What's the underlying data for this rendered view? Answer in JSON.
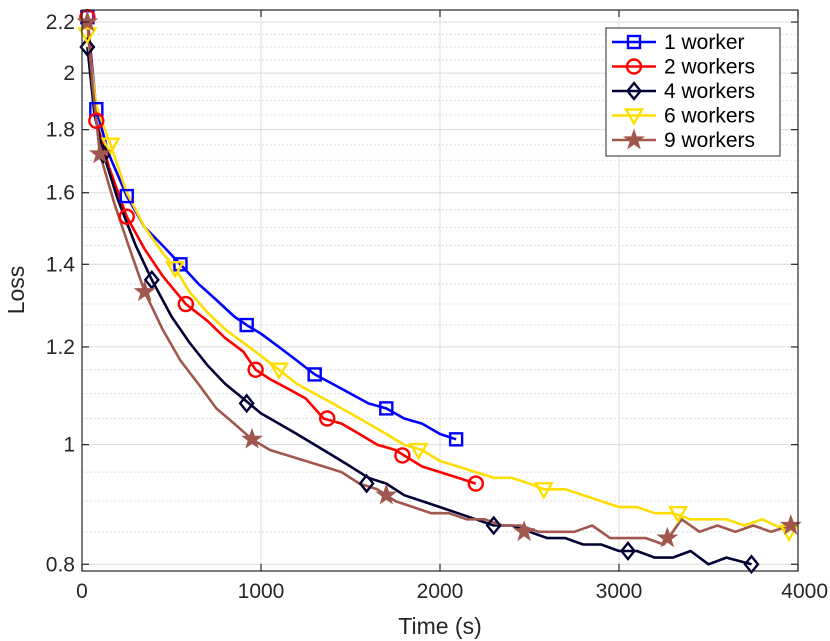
{
  "chart_data": {
    "type": "line",
    "title": "",
    "xlabel": "Time (s)",
    "ylabel": "Loss",
    "xlim": [
      0,
      4000
    ],
    "ylim": [
      0.79,
      2.25
    ],
    "y_scale": "log",
    "grid": true,
    "minor_grid": true,
    "legend_position": "top-right",
    "x_ticks": [
      0,
      1000,
      2000,
      3000,
      4000
    ],
    "x_tick_labels": [
      "0",
      "1000",
      "2000",
      "3000",
      "4000"
    ],
    "y_ticks": [
      0.8,
      1,
      1.2,
      1.4,
      1.6,
      1.8,
      2,
      2.2
    ],
    "y_tick_labels": [
      "0.8",
      "1",
      "1.2",
      "1.4",
      "1.6",
      "1.8",
      "2",
      "2.2"
    ],
    "series": [
      {
        "name": "1 worker",
        "color": "#0000ff",
        "marker": "square",
        "x": [
          30,
          80,
          150,
          250,
          350,
          450,
          550,
          650,
          750,
          850,
          920,
          1000,
          1100,
          1200,
          1300,
          1400,
          1500,
          1600,
          1700,
          1800,
          1900,
          2000,
          2090
        ],
        "y": [
          2.22,
          1.87,
          1.72,
          1.59,
          1.5,
          1.45,
          1.4,
          1.35,
          1.31,
          1.27,
          1.25,
          1.23,
          1.2,
          1.17,
          1.14,
          1.12,
          1.1,
          1.08,
          1.07,
          1.05,
          1.04,
          1.02,
          1.01
        ],
        "marker_x": [
          30,
          80,
          250,
          550,
          920,
          1300,
          1700,
          2090
        ],
        "marker_y": [
          2.22,
          1.87,
          1.59,
          1.4,
          1.25,
          1.14,
          1.07,
          1.01
        ]
      },
      {
        "name": "2 workers",
        "color": "#ff0000",
        "marker": "circle",
        "x": [
          30,
          80,
          150,
          250,
          350,
          450,
          580,
          700,
          800,
          900,
          970,
          1050,
          1150,
          1250,
          1350,
          1450,
          1550,
          1650,
          1750,
          1800,
          1900,
          2000,
          2100,
          2200
        ],
        "y": [
          2.22,
          1.83,
          1.68,
          1.53,
          1.44,
          1.37,
          1.3,
          1.26,
          1.22,
          1.19,
          1.15,
          1.13,
          1.11,
          1.09,
          1.05,
          1.04,
          1.02,
          1.0,
          0.99,
          0.98,
          0.96,
          0.95,
          0.94,
          0.93
        ],
        "marker_x": [
          30,
          80,
          250,
          580,
          970,
          1370,
          1790,
          2200
        ],
        "marker_y": [
          2.22,
          1.83,
          1.53,
          1.3,
          1.15,
          1.05,
          0.98,
          0.93
        ]
      },
      {
        "name": "4 workers",
        "color": "#000033",
        "marker": "diamond",
        "x": [
          30,
          70,
          120,
          200,
          300,
          390,
          500,
          600,
          700,
          800,
          900,
          1000,
          1100,
          1200,
          1300,
          1400,
          1500,
          1600,
          1700,
          1800,
          1900,
          2000,
          2100,
          2200,
          2300,
          2400,
          2500,
          2600,
          2700,
          2800,
          2900,
          3000,
          3100,
          3200,
          3300,
          3400,
          3500,
          3600,
          3740
        ],
        "y": [
          2.1,
          1.85,
          1.72,
          1.58,
          1.45,
          1.36,
          1.27,
          1.21,
          1.16,
          1.12,
          1.09,
          1.06,
          1.04,
          1.02,
          1.0,
          0.98,
          0.96,
          0.94,
          0.93,
          0.91,
          0.9,
          0.89,
          0.88,
          0.87,
          0.86,
          0.86,
          0.85,
          0.84,
          0.84,
          0.83,
          0.83,
          0.82,
          0.82,
          0.81,
          0.81,
          0.82,
          0.8,
          0.81,
          0.8
        ],
        "marker_x": [
          30,
          120,
          390,
          920,
          1590,
          2300,
          3050,
          3740
        ],
        "marker_y": [
          2.1,
          1.72,
          1.36,
          1.08,
          0.93,
          0.86,
          0.82,
          0.8
        ]
      },
      {
        "name": "6 workers",
        "color": "#ffdd00",
        "marker": "triangle-down",
        "x": [
          30,
          80,
          160,
          250,
          350,
          450,
          520,
          600,
          700,
          800,
          900,
          1000,
          1100,
          1200,
          1300,
          1400,
          1500,
          1600,
          1700,
          1800,
          1900,
          2000,
          2100,
          2200,
          2300,
          2400,
          2500,
          2580,
          2700,
          2800,
          2900,
          3000,
          3100,
          3200,
          3300,
          3400,
          3500,
          3600,
          3700,
          3800,
          3950
        ],
        "y": [
          2.15,
          1.88,
          1.75,
          1.6,
          1.5,
          1.43,
          1.39,
          1.33,
          1.28,
          1.24,
          1.21,
          1.18,
          1.15,
          1.12,
          1.1,
          1.08,
          1.06,
          1.04,
          1.02,
          1.0,
          0.99,
          0.97,
          0.96,
          0.95,
          0.94,
          0.94,
          0.93,
          0.92,
          0.92,
          0.91,
          0.9,
          0.89,
          0.89,
          0.88,
          0.88,
          0.87,
          0.87,
          0.87,
          0.86,
          0.87,
          0.85
        ],
        "marker_x": [
          30,
          160,
          520,
          1100,
          1880,
          2580,
          3330,
          3950
        ],
        "marker_y": [
          2.15,
          1.75,
          1.39,
          1.15,
          0.99,
          0.92,
          0.88,
          0.85
        ]
      },
      {
        "name": "9 workers",
        "color": "#a0584e",
        "marker": "star",
        "x": [
          30,
          60,
          100,
          180,
          260,
          350,
          450,
          550,
          650,
          750,
          850,
          950,
          1050,
          1150,
          1250,
          1350,
          1450,
          1550,
          1650,
          1750,
          1850,
          1950,
          2050,
          2150,
          2250,
          2350,
          2450,
          2550,
          2650,
          2750,
          2850,
          2950,
          3050,
          3150,
          3250,
          3350,
          3450,
          3550,
          3650,
          3750,
          3850,
          3960
        ],
        "y": [
          2.2,
          1.95,
          1.72,
          1.57,
          1.45,
          1.33,
          1.24,
          1.17,
          1.12,
          1.07,
          1.04,
          1.01,
          0.99,
          0.98,
          0.97,
          0.96,
          0.95,
          0.93,
          0.92,
          0.9,
          0.89,
          0.88,
          0.88,
          0.87,
          0.87,
          0.86,
          0.86,
          0.85,
          0.85,
          0.85,
          0.86,
          0.84,
          0.84,
          0.84,
          0.83,
          0.87,
          0.85,
          0.86,
          0.85,
          0.86,
          0.85,
          0.86
        ],
        "marker_x": [
          30,
          100,
          350,
          950,
          1700,
          2470,
          3270,
          3960
        ],
        "marker_y": [
          2.2,
          1.72,
          1.33,
          1.01,
          0.91,
          0.85,
          0.84,
          0.86
        ]
      }
    ]
  }
}
